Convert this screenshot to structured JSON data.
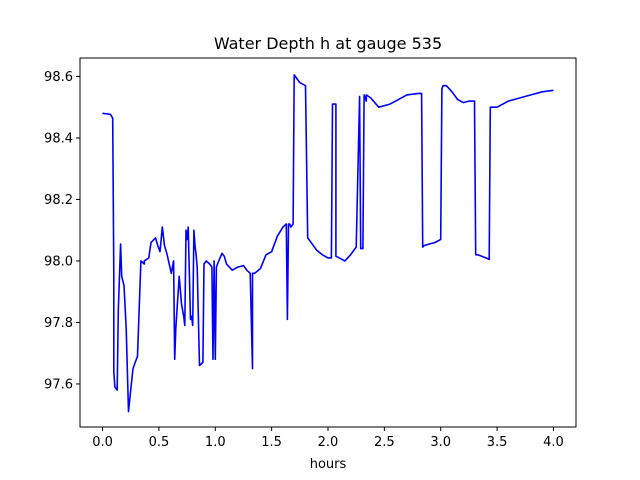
{
  "chart_data": {
    "type": "line",
    "title": "Water Depth h at gauge 535",
    "xlabel": "hours",
    "ylabel": "",
    "xlim": [
      -0.2,
      4.2
    ],
    "ylim": [
      97.46,
      98.66
    ],
    "xticks": [
      0.0,
      0.5,
      1.0,
      1.5,
      2.0,
      2.5,
      3.0,
      3.5,
      4.0
    ],
    "xtick_labels": [
      "0.0",
      "0.5",
      "1.0",
      "1.5",
      "2.0",
      "2.5",
      "3.0",
      "3.5",
      "4.0"
    ],
    "yticks": [
      97.6,
      97.8,
      98.0,
      98.2,
      98.4,
      98.6
    ],
    "ytick_labels": [
      "97.6",
      "97.8",
      "98.0",
      "98.2",
      "98.4",
      "98.6"
    ],
    "grid": false,
    "series": [
      {
        "color": "#0000ff",
        "x": [
          0.0,
          0.07,
          0.09,
          0.1,
          0.1,
          0.11,
          0.13,
          0.14,
          0.16,
          0.17,
          0.19,
          0.21,
          0.23,
          0.25,
          0.27,
          0.29,
          0.31,
          0.34,
          0.37,
          0.37,
          0.41,
          0.43,
          0.47,
          0.49,
          0.51,
          0.53,
          0.55,
          0.57,
          0.61,
          0.63,
          0.64,
          0.65,
          0.68,
          0.7,
          0.72,
          0.73,
          0.74,
          0.75,
          0.76,
          0.78,
          0.79,
          0.8,
          0.81,
          0.82,
          0.83,
          0.84,
          0.86,
          0.89,
          0.9,
          0.92,
          0.95,
          0.97,
          0.98,
          0.99,
          1.0,
          1.01,
          1.02,
          1.06,
          1.08,
          1.1,
          1.15,
          1.2,
          1.25,
          1.28,
          1.31,
          1.33,
          1.33,
          1.35,
          1.4,
          1.45,
          1.5,
          1.55,
          1.6,
          1.63,
          1.64,
          1.65,
          1.66,
          1.67,
          1.69,
          1.7,
          1.75,
          1.8,
          1.82,
          1.9,
          1.95,
          2.0,
          2.03,
          2.04,
          2.05,
          2.07,
          2.07,
          2.1,
          2.15,
          2.2,
          2.25,
          2.28,
          2.29,
          2.31,
          2.32,
          2.34,
          2.34,
          2.38,
          2.45,
          2.55,
          2.6,
          2.7,
          2.8,
          2.83,
          2.84,
          2.85,
          2.9,
          2.95,
          3.0,
          3.01,
          3.02,
          3.05,
          3.1,
          3.15,
          3.2,
          3.25,
          3.3,
          3.31,
          3.33,
          3.4,
          3.43,
          3.44,
          3.5,
          3.6,
          3.7,
          3.8,
          3.9,
          4.0
        ],
        "y": [
          98.48,
          98.477,
          98.465,
          97.96,
          97.64,
          97.59,
          97.58,
          97.84,
          98.055,
          97.95,
          97.92,
          97.78,
          97.51,
          97.58,
          97.65,
          97.67,
          97.69,
          98.0,
          97.99,
          98.0,
          98.01,
          98.06,
          98.075,
          98.05,
          98.03,
          98.11,
          98.05,
          98.025,
          97.96,
          98.0,
          97.68,
          97.78,
          97.95,
          97.86,
          97.82,
          97.79,
          98.1,
          98.07,
          98.11,
          97.81,
          97.82,
          97.79,
          98.1,
          98.05,
          98.02,
          97.98,
          97.66,
          97.67,
          97.99,
          98.0,
          97.99,
          97.98,
          97.68,
          98.0,
          97.68,
          97.98,
          97.99,
          98.025,
          98.015,
          97.99,
          97.97,
          97.98,
          97.985,
          97.97,
          97.96,
          97.65,
          97.96,
          97.96,
          97.975,
          98.02,
          98.03,
          98.08,
          98.11,
          98.12,
          97.81,
          98.12,
          98.12,
          98.11,
          98.12,
          98.605,
          98.58,
          98.57,
          98.075,
          98.035,
          98.02,
          98.01,
          98.01,
          98.51,
          98.51,
          98.51,
          98.015,
          98.01,
          98.0,
          98.02,
          98.045,
          98.535,
          98.04,
          98.04,
          98.54,
          98.52,
          98.54,
          98.53,
          98.5,
          98.51,
          98.52,
          98.54,
          98.545,
          98.545,
          98.045,
          98.05,
          98.055,
          98.06,
          98.07,
          98.56,
          98.57,
          98.57,
          98.55,
          98.525,
          98.515,
          98.52,
          98.52,
          98.02,
          98.02,
          98.01,
          98.005,
          98.5,
          98.5,
          98.52,
          98.53,
          98.54,
          98.55,
          98.555
        ]
      }
    ]
  }
}
